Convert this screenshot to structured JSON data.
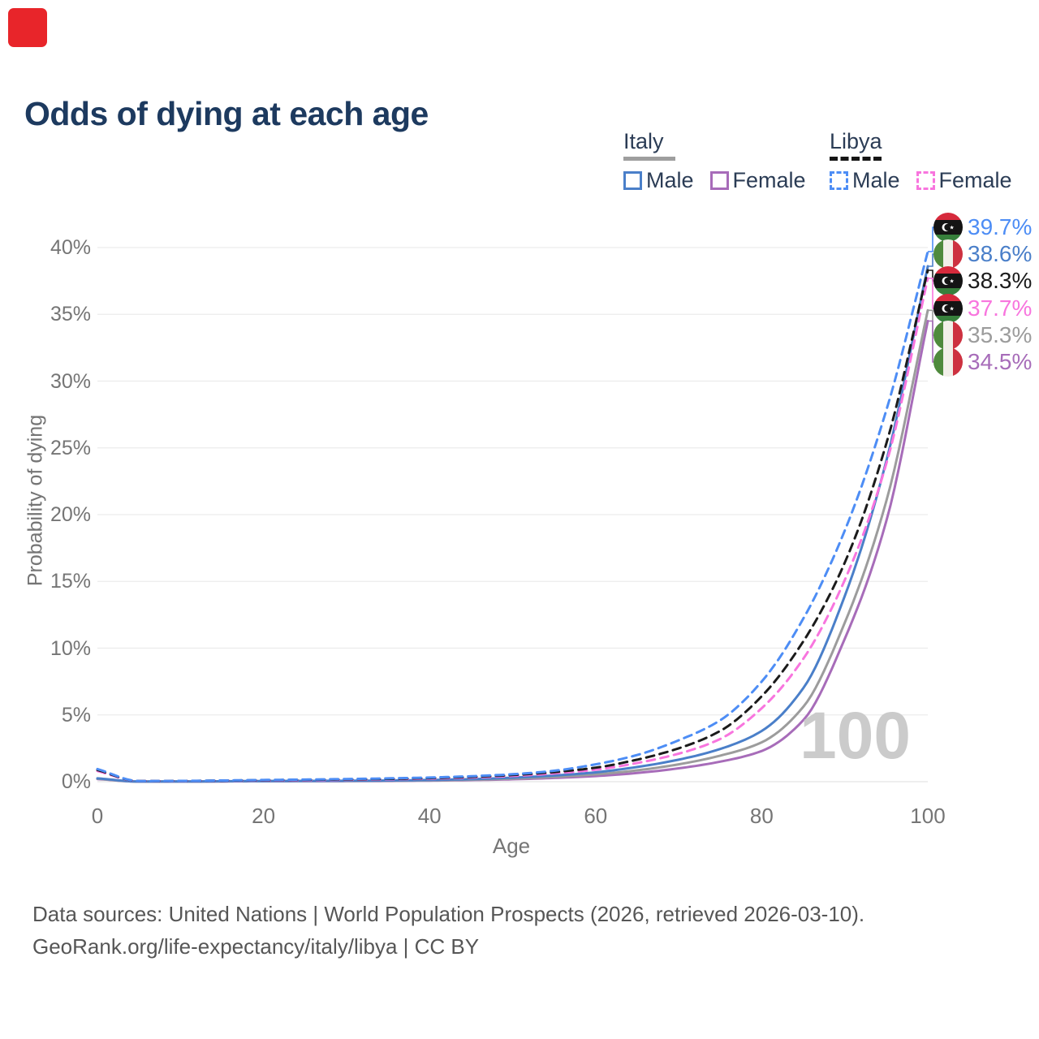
{
  "brand": {
    "mark_color": "#e8252a"
  },
  "title": "Odds of dying at each age",
  "legend": {
    "groups": [
      {
        "id": "italy",
        "label": "Italy",
        "line_style": "solid",
        "underline_color": "#9e9e9e",
        "items": [
          {
            "label": "Male",
            "color": "#4a7fc9"
          },
          {
            "label": "Female",
            "color": "#a76cb9"
          }
        ]
      },
      {
        "id": "libya",
        "label": "Libya",
        "line_style": "dashed",
        "underline_color": "#151515",
        "items": [
          {
            "label": "Male",
            "color": "#4d8df5"
          },
          {
            "label": "Female",
            "color": "#f875de"
          }
        ]
      }
    ]
  },
  "chart_data": {
    "type": "line",
    "title": "Odds of dying at each age",
    "xlabel": "Age",
    "ylabel": "Probability of dying",
    "x_ticks": [
      0,
      20,
      40,
      60,
      80,
      100
    ],
    "y_ticks_percent": [
      0,
      5,
      10,
      15,
      20,
      25,
      30,
      35,
      40
    ],
    "y_tick_suffix": "%",
    "xlim": [
      0,
      100
    ],
    "ylim_percent": [
      0,
      42.5
    ],
    "grid": "horizontal",
    "legend_position": "top-right",
    "watermark": "100",
    "ages": [
      0,
      5,
      10,
      15,
      20,
      25,
      30,
      35,
      40,
      45,
      50,
      55,
      60,
      65,
      70,
      75,
      80,
      85,
      90,
      95,
      100
    ],
    "series": [
      {
        "id": "italy-female",
        "name": "Italy Female",
        "country": "Italy",
        "sex": "Female",
        "flag": "italy",
        "style": "solid",
        "color": "#a76cb9",
        "end_label": "34.5%",
        "end_value": 34.5,
        "values": [
          0.2,
          0.008,
          0.01,
          0.02,
          0.03,
          0.035,
          0.04,
          0.055,
          0.08,
          0.12,
          0.18,
          0.28,
          0.42,
          0.65,
          1.0,
          1.5,
          2.3,
          4.6,
          10.7,
          19.5,
          34.5
        ]
      },
      {
        "id": "italy-total",
        "name": "Italy Total",
        "country": "Italy",
        "sex": "Total",
        "flag": "italy",
        "style": "solid",
        "color": "#9c9c9c",
        "end_label": "35.3%",
        "end_value": 35.3,
        "values": [
          0.22,
          0.009,
          0.011,
          0.025,
          0.04,
          0.05,
          0.055,
          0.07,
          0.1,
          0.15,
          0.23,
          0.36,
          0.55,
          0.85,
          1.3,
          1.95,
          2.95,
          5.6,
          11.9,
          21.0,
          35.3
        ]
      },
      {
        "id": "italy-male",
        "name": "Italy Male",
        "country": "Italy",
        "sex": "Male",
        "flag": "italy",
        "style": "solid",
        "color": "#4a7fc9",
        "end_label": "38.6%",
        "end_value": 38.6,
        "values": [
          0.25,
          0.01,
          0.012,
          0.03,
          0.05,
          0.06,
          0.07,
          0.09,
          0.13,
          0.19,
          0.3,
          0.46,
          0.7,
          1.1,
          1.65,
          2.45,
          3.8,
          7.0,
          13.9,
          24.0,
          38.6
        ]
      },
      {
        "id": "libya-female",
        "name": "Libya Female",
        "country": "Libya",
        "sex": "Female",
        "flag": "libya",
        "style": "dashed",
        "color": "#f875de",
        "end_label": "37.7%",
        "end_value": 37.7,
        "values": [
          0.8,
          0.04,
          0.05,
          0.07,
          0.09,
          0.11,
          0.14,
          0.18,
          0.23,
          0.31,
          0.43,
          0.62,
          0.9,
          1.4,
          2.1,
          3.2,
          5.5,
          9.2,
          15.1,
          23.8,
          37.7
        ]
      },
      {
        "id": "libya-total",
        "name": "Libya Total",
        "country": "Libya",
        "sex": "Total",
        "flag": "libya",
        "style": "dashed",
        "color": "#1b1b1b",
        "end_label": "38.3%",
        "end_value": 38.3,
        "values": [
          0.88,
          0.045,
          0.055,
          0.08,
          0.11,
          0.14,
          0.17,
          0.21,
          0.27,
          0.36,
          0.5,
          0.72,
          1.05,
          1.65,
          2.5,
          3.8,
          6.4,
          10.5,
          16.4,
          25.3,
          38.3
        ]
      },
      {
        "id": "libya-male",
        "name": "Libya Male",
        "country": "Libya",
        "sex": "Male",
        "flag": "libya",
        "style": "dashed",
        "color": "#4d8df5",
        "end_label": "39.7%",
        "end_value": 39.7,
        "values": [
          0.95,
          0.05,
          0.06,
          0.09,
          0.13,
          0.16,
          0.2,
          0.25,
          0.31,
          0.41,
          0.56,
          0.82,
          1.3,
          2.0,
          3.1,
          4.6,
          7.5,
          12.2,
          18.8,
          27.8,
          39.7
        ]
      }
    ]
  },
  "footer": {
    "line1": "Data sources: United Nations | World Population Prospects (2026, retrieved 2026-03-10).",
    "line2": "GeoRank.org/life-expectancy/italy/libya | CC BY"
  }
}
